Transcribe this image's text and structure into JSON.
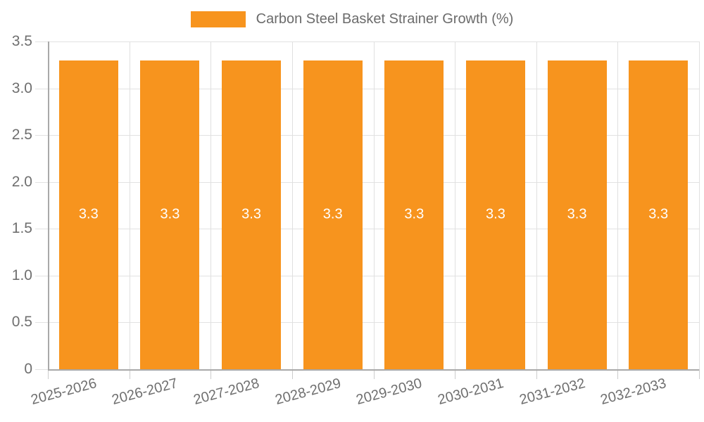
{
  "legend": {
    "label": "Carbon Steel Basket Strainer Growth (%)",
    "swatch_color": "#F7941E"
  },
  "chart_data": {
    "type": "bar",
    "title": "Carbon Steel Basket Strainer Growth (%)",
    "categories": [
      "2025-2026",
      "2026-2027",
      "2027-2028",
      "2028-2029",
      "2029-2030",
      "2030-2031",
      "2031-2032",
      "2032-2033"
    ],
    "values": [
      3.3,
      3.3,
      3.3,
      3.3,
      3.3,
      3.3,
      3.3,
      3.3
    ],
    "bar_labels": [
      "3.3",
      "3.3",
      "3.3",
      "3.3",
      "3.3",
      "3.3",
      "3.3",
      "3.3"
    ],
    "xlabel": "",
    "ylabel": "",
    "ylim": [
      0,
      3.5
    ],
    "ytick_values": [
      0,
      0.5,
      1.0,
      1.5,
      2.0,
      2.5,
      3.0,
      3.5
    ],
    "ytick_labels": [
      "0",
      "0.5",
      "1.0",
      "1.5",
      "2.0",
      "2.5",
      "3.0",
      "3.5"
    ],
    "grid": true,
    "legend_position": "top",
    "bar_color": "#F7941E",
    "bar_label_color": "#FFFFFF"
  },
  "colors": {
    "grid": "#E2E2E2",
    "axis": "#A9A9A9",
    "tick_text": "#6F6F6F",
    "background": "#FFFFFF"
  }
}
